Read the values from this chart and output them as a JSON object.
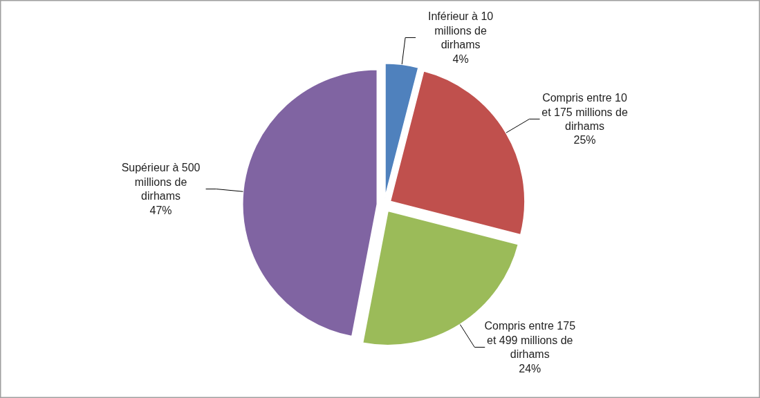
{
  "chart_data": {
    "type": "pie",
    "categories": [
      "Inférieur à 10 millions de dirhams",
      "Compris entre 10 et 175 millions de dirhams",
      "Compris entre 175 et 499 millions de dirhams",
      "Supérieur à 500 millions de dirhams"
    ],
    "values": [
      4,
      25,
      24,
      47
    ],
    "colors": [
      "#4f81bd",
      "#c0504d",
      "#9bbb59",
      "#8064a2"
    ],
    "value_labels": [
      "4%",
      "25%",
      "24%",
      "47%"
    ]
  }
}
